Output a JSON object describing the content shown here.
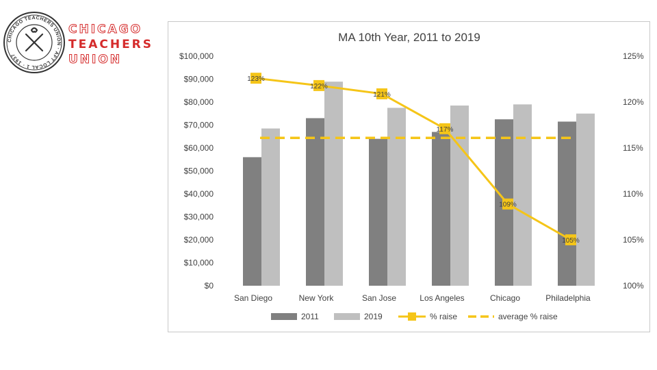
{
  "logo": {
    "seal_text": "CHICAGO TEACHERS UNION · AFT LOCAL 1 · 1937",
    "line1": "CHICAGO",
    "line2": "TEACHERS",
    "line3": "UNION"
  },
  "colors": {
    "bar_2011": "#808080",
    "bar_2019": "#bfbfbf",
    "raise_line": "#f5c518",
    "brand_red": "#d52b2b"
  },
  "chart_data": {
    "type": "bar",
    "title": "MA 10th Year, 2011 to 2019",
    "categories": [
      "San Diego",
      "New York",
      "San Jose",
      "Los Angeles",
      "Chicago",
      "Philadelphia"
    ],
    "series": [
      {
        "name": "2011",
        "type": "bar",
        "axis": "left",
        "values": [
          56000,
          73000,
          64000,
          67000,
          72500,
          71500
        ]
      },
      {
        "name": "2019",
        "type": "bar",
        "axis": "left",
        "values": [
          68500,
          88900,
          77500,
          78500,
          79000,
          75000
        ]
      },
      {
        "name": "% raise",
        "type": "line",
        "axis": "right",
        "values": [
          122.6,
          121.8,
          120.9,
          117.1,
          108.9,
          105.0
        ],
        "labels": [
          "123%",
          "122%",
          "121%",
          "117%",
          "109%",
          "105%"
        ]
      },
      {
        "name": "average % raise",
        "type": "dashed-line",
        "axis": "right",
        "values": [
          116.1,
          116.1,
          116.1,
          116.1,
          116.1,
          116.1
        ]
      }
    ],
    "y_left": {
      "min": 0,
      "max": 100000,
      "step": 10000,
      "tick_labels": [
        "$0",
        "$10,000",
        "$20,000",
        "$30,000",
        "$40,000",
        "$50,000",
        "$60,000",
        "$70,000",
        "$80,000",
        "$90,000",
        "$100,000"
      ]
    },
    "y_right": {
      "min": 100,
      "max": 125,
      "step": 5,
      "tick_labels": [
        "100%",
        "105%",
        "110%",
        "115%",
        "120%",
        "125%"
      ]
    },
    "legend": [
      "2011",
      "2019",
      "% raise",
      "average % raise"
    ],
    "legend_position": "bottom",
    "grid": false
  }
}
